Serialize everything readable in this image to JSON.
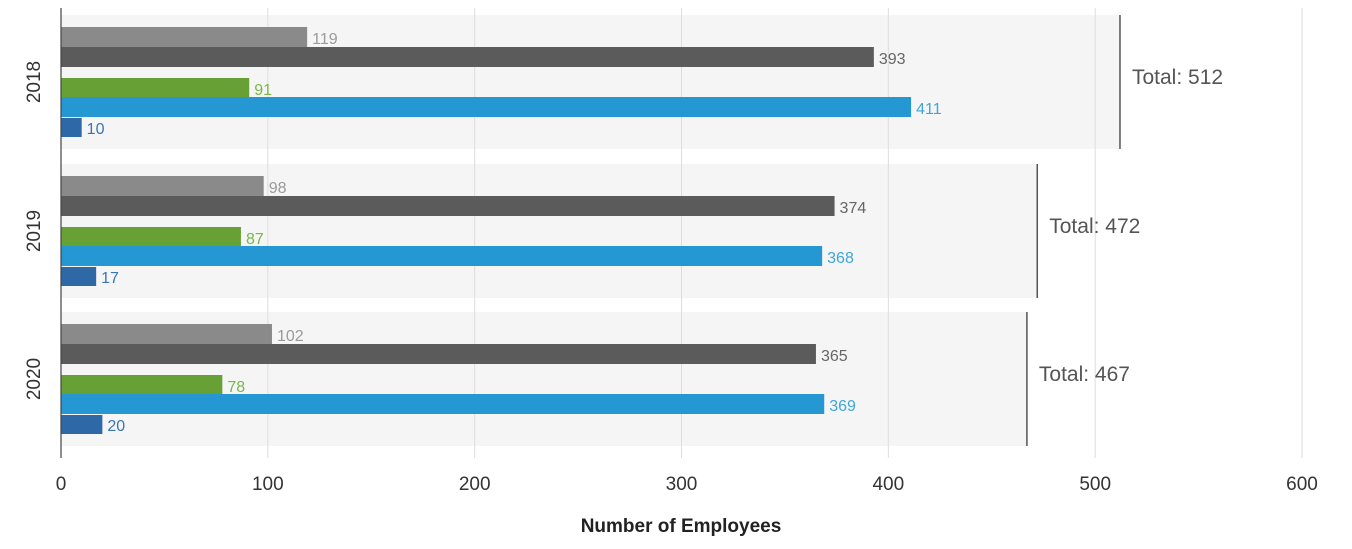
{
  "chart_data": {
    "type": "bar",
    "orientation": "horizontal",
    "xlabel": "Number of Employees",
    "xlim": [
      0,
      600
    ],
    "xticks": [
      "0",
      "100",
      "200",
      "300",
      "400",
      "500",
      "600"
    ],
    "grid": true,
    "categories": [
      "2018",
      "2019",
      "2020"
    ],
    "series": [
      {
        "values": [
          119,
          98,
          102
        ],
        "color": "#8a8a8a",
        "label_color": "#9a9a9a"
      },
      {
        "values": [
          393,
          374,
          365
        ],
        "color": "#5b5b5b",
        "label_color": "#666666"
      },
      {
        "values": [
          91,
          87,
          78
        ],
        "color": "#67a135",
        "label_color": "#7ab648"
      },
      {
        "values": [
          411,
          368,
          369
        ],
        "color": "#2598d3",
        "label_color": "#3ea6da"
      },
      {
        "values": [
          10,
          17,
          20
        ],
        "color": "#2f68a6",
        "label_color": "#3a75b3"
      }
    ],
    "totals": [
      {
        "label": "Total: 512",
        "value": 512
      },
      {
        "label": "Total: 472",
        "value": 472
      },
      {
        "label": "Total: 467",
        "value": 467
      }
    ]
  }
}
